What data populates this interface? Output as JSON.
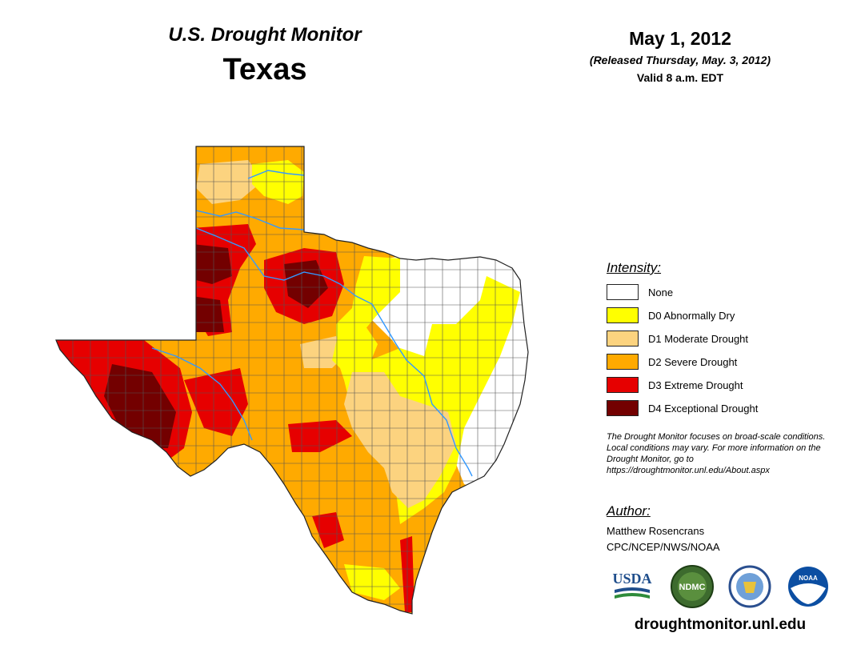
{
  "header": {
    "title": "U.S. Drought Monitor",
    "region": "Texas",
    "date": "May 1, 2012",
    "released": "(Released Thursday, May. 3, 2012)",
    "valid": "Valid 8 a.m. EDT"
  },
  "legend": {
    "title": "Intensity:",
    "items": [
      {
        "label": "None",
        "color": "#ffffff"
      },
      {
        "label": "D0 Abnormally Dry",
        "color": "#ffff00"
      },
      {
        "label": "D1 Moderate Drought",
        "color": "#fcd37f"
      },
      {
        "label": "D2 Severe Drought",
        "color": "#ffaa00"
      },
      {
        "label": "D3 Extreme Drought",
        "color": "#e60000"
      },
      {
        "label": "D4 Exceptional Drought",
        "color": "#730000"
      }
    ]
  },
  "note": "The Drought Monitor focuses on broad-scale conditions. Local conditions may vary. For more information on the Drought Monitor, go to https://droughtmonitor.unl.edu/About.aspx",
  "author": {
    "title": "Author:",
    "name": "Matthew Rosencrans",
    "org": "CPC/NCEP/NWS/NOAA"
  },
  "logos": [
    {
      "name": "usda-logo",
      "text": "USDA"
    },
    {
      "name": "ndmc-logo",
      "text": "NDMC"
    },
    {
      "name": "doc-seal",
      "text": ""
    },
    {
      "name": "noaa-logo",
      "text": "NOAA"
    }
  ],
  "footer": {
    "website": "droughtmonitor.unl.edu"
  },
  "colors": {
    "river": "#3399ff",
    "county_lines": "#555555"
  }
}
